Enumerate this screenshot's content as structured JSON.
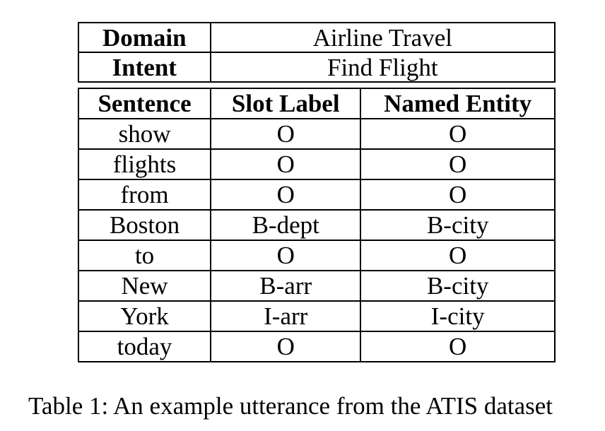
{
  "meta": {
    "domain_label": "Domain",
    "domain_value": "Airline Travel",
    "intent_label": "Intent",
    "intent_value": "Find Flight"
  },
  "table": {
    "headers": [
      "Sentence",
      "Slot Label",
      "Named Entity"
    ],
    "rows": [
      [
        "show",
        "O",
        "O"
      ],
      [
        "flights",
        "O",
        "O"
      ],
      [
        "from",
        "O",
        "O"
      ],
      [
        "Boston",
        "B-dept",
        "B-city"
      ],
      [
        "to",
        "O",
        "O"
      ],
      [
        "New",
        "B-arr",
        "B-city"
      ],
      [
        "York",
        "I-arr",
        "I-city"
      ],
      [
        "today",
        "O",
        "O"
      ]
    ]
  },
  "caption": "Table 1: An example utterance from the ATIS dataset"
}
